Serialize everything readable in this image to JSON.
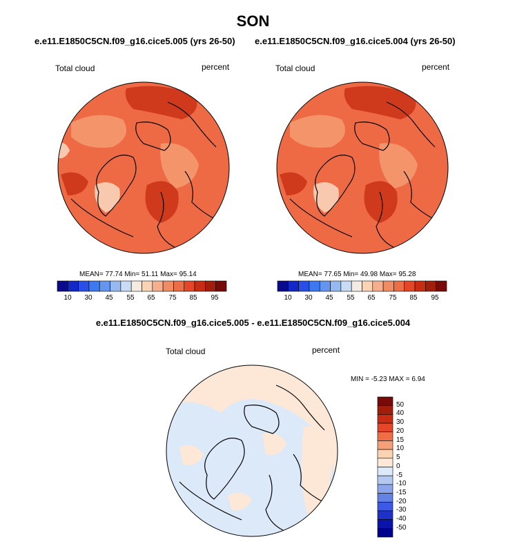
{
  "figure": {
    "season": "SON",
    "case_left": "e.e11.E1850C5CN.f09_g16.cice5.005 (yrs 26-50)",
    "case_right": "e.e11.E1850C5CN.f09_g16.cice5.004 (yrs 26-50)",
    "diff_title": "e.e11.E1850C5CN.f09_g16.cice5.005 - e.e11.E1850C5CN.f09_g16.cice5.004"
  },
  "panels": {
    "left": {
      "variable": "Total cloud",
      "units": "percent",
      "mean": "77.74",
      "min": "51.11",
      "max": "95.14",
      "stats_text": "MEAN=  77.74  Min=  51.11  Max=  95.14"
    },
    "right": {
      "variable": "Total cloud",
      "units": "percent",
      "mean": "77.65",
      "min": "49.98",
      "max": "95.28",
      "stats_text": "MEAN=  77.65  Min=  49.98  Max=  95.28"
    },
    "diff": {
      "variable": "Total cloud",
      "units": "percent",
      "min": "-5.23",
      "max": "6.94",
      "stats_text": "MIN =  -5.23 MAX =   6.94"
    }
  },
  "colorbar_abs": {
    "tick_labels": [
      "10",
      "30",
      "45",
      "55",
      "65",
      "75",
      "85",
      "95"
    ],
    "colors": [
      "#0a0a8c",
      "#1428c8",
      "#2850e6",
      "#3c78f0",
      "#6496f0",
      "#96b9f0",
      "#c8dcf5",
      "#f5ebe1",
      "#fad2b4",
      "#f5af8c",
      "#f08c64",
      "#eb6e46",
      "#e64628",
      "#c82d14",
      "#a01e0a",
      "#780a0a"
    ]
  },
  "colorbar_diff": {
    "tick_labels": [
      "50",
      "40",
      "30",
      "20",
      "15",
      "10",
      "5",
      "0",
      "-5",
      "-10",
      "-15",
      "-20",
      "-30",
      "-40",
      "-50"
    ],
    "colors": [
      "#780a0a",
      "#a01e0a",
      "#c82d14",
      "#e64628",
      "#f06e46",
      "#f5a078",
      "#fad2b4",
      "#fde8d7",
      "#dce9f8",
      "#b4c8f0",
      "#8ca5eb",
      "#6482e6",
      "#3c5ae6",
      "#1e32c8",
      "#0a14aa",
      "#00008c"
    ]
  },
  "map_colors": {
    "abs_background": "#ee6a45",
    "abs_dark": "#cf3a1c",
    "abs_light": "#f4946b",
    "abs_pale": "#f8c9ae",
    "diff_positive": "#fde8d7",
    "diff_negative": "#dce9f8"
  }
}
